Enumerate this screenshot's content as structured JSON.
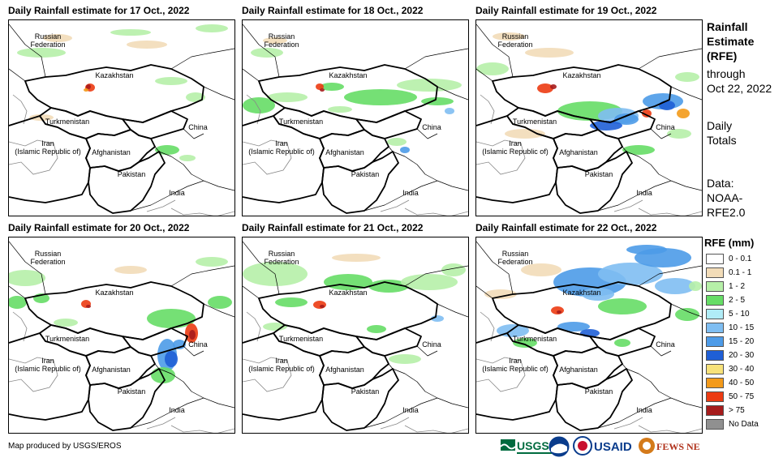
{
  "panels": [
    {
      "title": "Daily Rainfall estimate for 17 Oct., 2022"
    },
    {
      "title": "Daily Rainfall estimate for 18 Oct., 2022"
    },
    {
      "title": "Daily Rainfall estimate for 19 Oct., 2022"
    },
    {
      "title": "Daily Rainfall estimate for 20 Oct., 2022"
    },
    {
      "title": "Daily Rainfall estimate for 21 Oct., 2022"
    },
    {
      "title": "Daily Rainfall estimate for 22 Oct., 2022"
    }
  ],
  "map_labels": {
    "russia": "Russian\nFederation",
    "kazakhstan": "Kazakhstan",
    "turkmenistan": "Turkmenistan",
    "iran": "Iran\n(Islamic Republic of)",
    "afghanistan": "Afghanistan",
    "pakistan": "Pakistan",
    "china": "China",
    "india": "India"
  },
  "side_info": {
    "title": "Rainfall\nEstimate\n(RFE)",
    "through": "through\nOct 22, 2022",
    "totals": "Daily\nTotals",
    "data": "Data:\nNOAA-\nRFE2.0"
  },
  "legend": {
    "title": "RFE (mm)",
    "items": [
      {
        "label": "0 - 0.1",
        "color": "#ffffff"
      },
      {
        "label": "0.1 - 1",
        "color": "#f2dcb8"
      },
      {
        "label": "1 - 2",
        "color": "#b6f0a8"
      },
      {
        "label": "2 - 5",
        "color": "#66dd66"
      },
      {
        "label": "5 - 10",
        "color": "#b0ecf7"
      },
      {
        "label": "10 - 15",
        "color": "#7fbef2"
      },
      {
        "label": "15 - 20",
        "color": "#4d9be8"
      },
      {
        "label": "20 - 30",
        "color": "#1f5fd6"
      },
      {
        "label": "30 - 40",
        "color": "#f7e27a"
      },
      {
        "label": "40 - 50",
        "color": "#f39a1a"
      },
      {
        "label": "50 - 75",
        "color": "#ec3b12"
      },
      {
        "label": "> 75",
        "color": "#a61c1c"
      },
      {
        "label": "No Data",
        "color": "#909090"
      }
    ]
  },
  "credit": "Map produced by USGS/EROS",
  "logos": [
    {
      "text": "USGS",
      "icon": "usgs-logo"
    },
    {
      "text": "NOAA",
      "icon": "noaa-logo"
    },
    {
      "text": "USAID",
      "icon": "usaid-logo"
    },
    {
      "text": "FEWS NET",
      "icon": "fewsnet-logo"
    }
  ]
}
